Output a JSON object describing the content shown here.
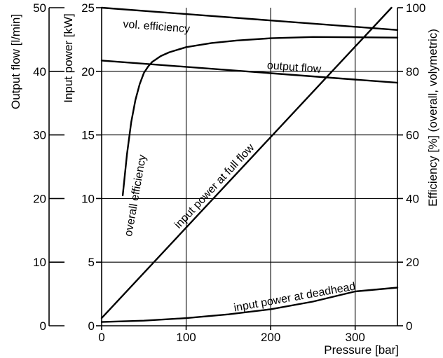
{
  "chart_data": {
    "type": "line",
    "grid": true,
    "xaxis": {
      "label": "Pressure [bar]",
      "range": [
        0,
        350
      ],
      "ticks": [
        0,
        100,
        200,
        300
      ],
      "tick_labels": [
        "0",
        "100",
        "200",
        "300"
      ]
    },
    "yaxes": [
      {
        "id": "flow",
        "label": "Output flow [l/min]",
        "range": [
          0,
          50
        ],
        "ticks": [
          0,
          10,
          20,
          30,
          40,
          50
        ],
        "tick_labels": [
          "0",
          "10",
          "20",
          "30",
          "40",
          "50"
        ]
      },
      {
        "id": "power",
        "label": "Input power [kW]",
        "range": [
          0,
          25
        ],
        "ticks": [
          0,
          5,
          10,
          15,
          20,
          25
        ],
        "tick_labels": [
          "0",
          "5",
          "10",
          "15",
          "20",
          "25"
        ]
      },
      {
        "id": "eff",
        "label": "Efficiency [%] (overall, volymetric)",
        "range": [
          0,
          100
        ],
        "ticks": [
          0,
          20,
          40,
          60,
          80,
          100
        ],
        "tick_labels": [
          "0",
          "20",
          "40",
          "60",
          "80",
          "100"
        ]
      }
    ],
    "series": [
      {
        "name": "vol. efficiency",
        "axis": "eff",
        "x": [
          0,
          350
        ],
        "y": [
          100,
          93
        ]
      },
      {
        "name": "output flow",
        "axis": "flow",
        "x": [
          0,
          350
        ],
        "y": [
          41.7,
          38.2
        ]
      },
      {
        "name": "overall efficiency",
        "axis": "eff",
        "x": [
          25,
          30,
          35,
          40,
          45,
          50,
          55,
          60,
          70,
          80,
          100,
          130,
          160,
          200,
          250,
          300,
          350
        ],
        "y": [
          41,
          54,
          64,
          71,
          76,
          79.5,
          81.5,
          83,
          84.8,
          86,
          87.6,
          88.9,
          89.7,
          90.4,
          90.8,
          90.7,
          90.6
        ]
      },
      {
        "name": "input power at full flow",
        "axis": "power",
        "x": [
          0,
          350
        ],
        "y": [
          0.6,
          25.5
        ]
      },
      {
        "name": "input power at deadhead",
        "axis": "power",
        "x": [
          0,
          50,
          100,
          150,
          200,
          250,
          300,
          350
        ],
        "y": [
          0.3,
          0.4,
          0.6,
          0.9,
          1.3,
          1.9,
          2.7,
          3.0
        ]
      }
    ]
  }
}
